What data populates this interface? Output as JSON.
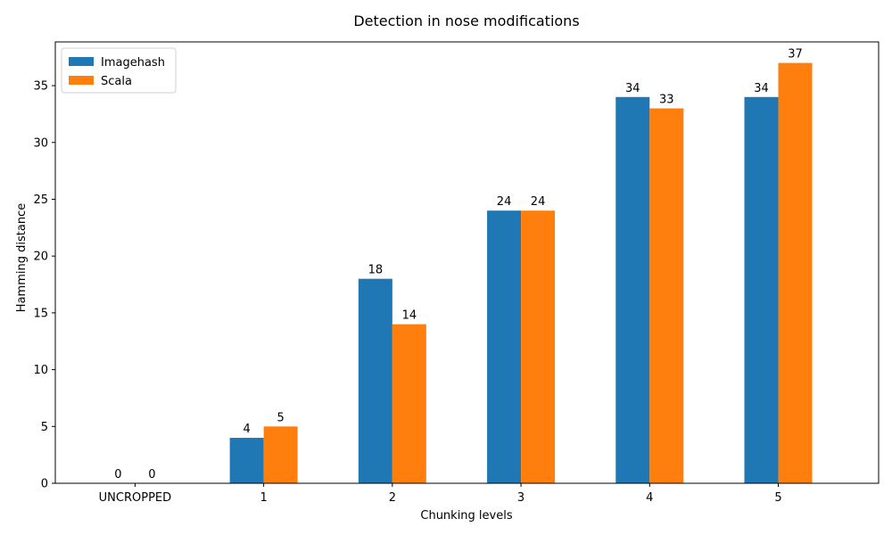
{
  "chart_data": {
    "type": "bar",
    "title": "Detection in nose modifications",
    "xlabel": "Chunking levels",
    "ylabel": "Hamming distance",
    "categories": [
      "UNCROPPED",
      "1",
      "2",
      "3",
      "4",
      "5"
    ],
    "series": [
      {
        "name": "Imagehash",
        "color": "#1f77b4",
        "values": [
          0,
          4,
          18,
          24,
          34,
          34
        ]
      },
      {
        "name": "Scala",
        "color": "#ff7f0e",
        "values": [
          0,
          5,
          14,
          24,
          33,
          37
        ]
      }
    ],
    "ylim": [
      0,
      38.85
    ],
    "yticks": [
      0,
      5,
      10,
      15,
      20,
      25,
      30,
      35
    ],
    "grid": false,
    "legend_position": "top-left",
    "data_labels": true
  }
}
